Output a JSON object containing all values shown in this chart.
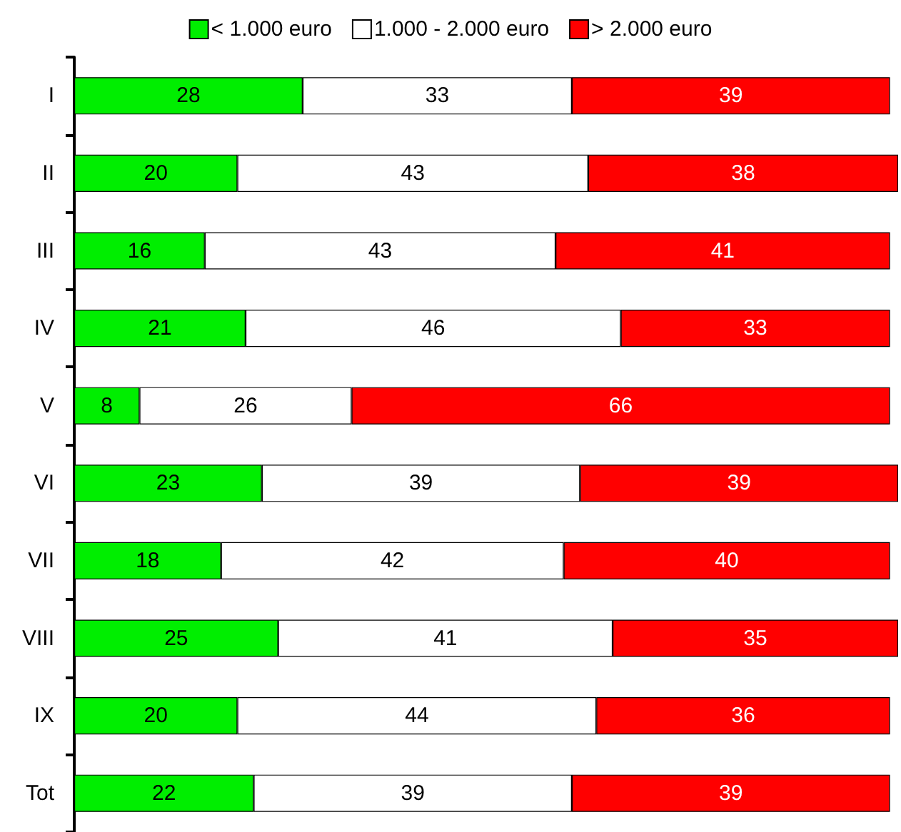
{
  "chart_data": {
    "type": "bar",
    "orientation": "horizontal",
    "stacked": true,
    "data_labels": true,
    "legend": "top",
    "grid": false,
    "categories": [
      "I",
      "II",
      "III",
      "IV",
      "V",
      "VI",
      "VII",
      "VIII",
      "IX",
      "Tot"
    ],
    "series": [
      {
        "name": "< 1.000 euro",
        "color": "#00ee00",
        "values": [
          28,
          20,
          16,
          21,
          8,
          23,
          18,
          25,
          20,
          22
        ]
      },
      {
        "name": "1.000 - 2.000 euro",
        "color": "#ffffff",
        "values": [
          33,
          43,
          43,
          46,
          26,
          39,
          42,
          41,
          44,
          39
        ]
      },
      {
        "name": "> 2.000 euro",
        "color": "#ff0000",
        "values": [
          39,
          38,
          41,
          33,
          66,
          39,
          40,
          35,
          36,
          39
        ]
      }
    ]
  }
}
